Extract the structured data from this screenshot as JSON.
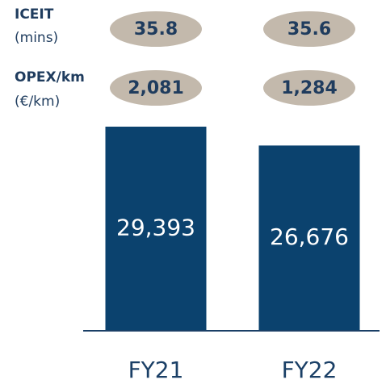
{
  "chart_data": {
    "type": "bar",
    "categories": [
      "FY21",
      "FY22"
    ],
    "values": [
      29393,
      26676
    ],
    "value_labels": [
      "29,393",
      "26,676"
    ],
    "color": "#0b426e",
    "metrics": [
      {
        "name": "ICEIT",
        "unit": "(mins)",
        "values": [
          35.8,
          35.6
        ]
      },
      {
        "name": "OPEX/km",
        "unit": "(€/km)",
        "values": [
          2081,
          1284
        ],
        "value_labels": [
          "2,081",
          "1,284"
        ]
      }
    ]
  }
}
